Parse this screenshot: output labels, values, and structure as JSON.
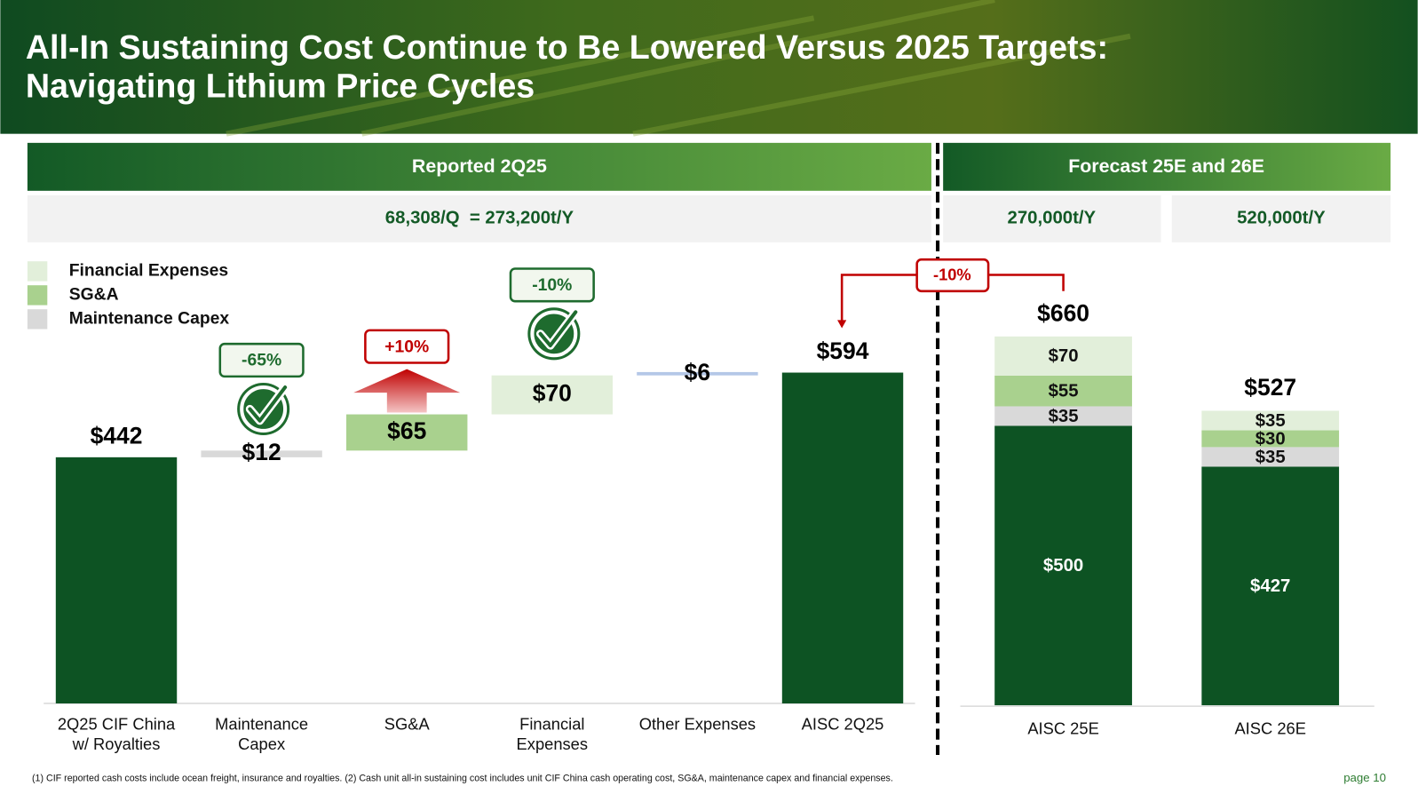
{
  "slide": {
    "title": [
      "All-In Sustaining Cost Continue to Be Lowered Versus 2025 Targets:",
      "Navigating Lithium Price Cycles"
    ],
    "sections": [
      "Reported 2Q25",
      "Forecast 25E and 26E"
    ],
    "capacities": [
      "68,308/Q  = 273,200t/Y",
      "270,000t/Y",
      "520,000t/Y"
    ],
    "bridge_label": "-10%",
    "footnote": "(1) CIF reported cash costs include ocean freight, insurance and royalties. (2) Cash unit all-in sustaining cost includes unit CIF China cash operating cost, SG&A, maintenance capex and financial expenses.",
    "page": "page 10"
  },
  "chart_data": [
    {
      "type": "waterfall",
      "categories": [
        "2Q25 CIF China w/ Royalties",
        "Maintenance Capex",
        "SG&A",
        "Financial Expenses",
        "Other Expenses",
        "AISC 2Q25"
      ],
      "values": [
        442,
        12,
        65,
        70,
        6,
        594
      ],
      "value_labels": [
        "$442",
        "$12",
        "$65",
        "$70",
        "$6",
        "$594"
      ],
      "bar_kinds": [
        "total",
        "increase",
        "increase",
        "increase",
        "increase",
        "total"
      ],
      "colors": [
        "#0d5323",
        "#d9d9d9",
        "#a9d18e",
        "#e2efda",
        "#b4c7e7",
        "#0d5323"
      ],
      "change_labels": [
        null,
        "-65%",
        "+10%",
        "-10%",
        null,
        null
      ],
      "change_colors": [
        null,
        "#1e6b2e",
        "#c00000",
        "#1e6b2e",
        null,
        null
      ]
    },
    {
      "type": "stacked_bar",
      "categories": [
        "AISC 25E",
        "AISC 26E"
      ],
      "series": [
        {
          "color": "#0d5323",
          "values": [
            500,
            427
          ],
          "value_labels": [
            "$500",
            "$427"
          ]
        },
        {
          "name": "Maintenance Capex",
          "color": "#d9d9d9",
          "values": [
            35,
            35
          ],
          "value_labels": [
            "$35",
            "$35"
          ]
        },
        {
          "name": "SG&A",
          "color": "#a9d18e",
          "values": [
            55,
            30
          ],
          "value_labels": [
            "$55",
            "$30"
          ]
        },
        {
          "name": "Financial Expenses",
          "color": "#e2efda",
          "values": [
            70,
            35
          ],
          "value_labels": [
            "$70",
            "$35"
          ]
        }
      ],
      "totals": [
        660,
        527
      ],
      "total_labels": [
        "$660",
        "$527"
      ]
    }
  ]
}
